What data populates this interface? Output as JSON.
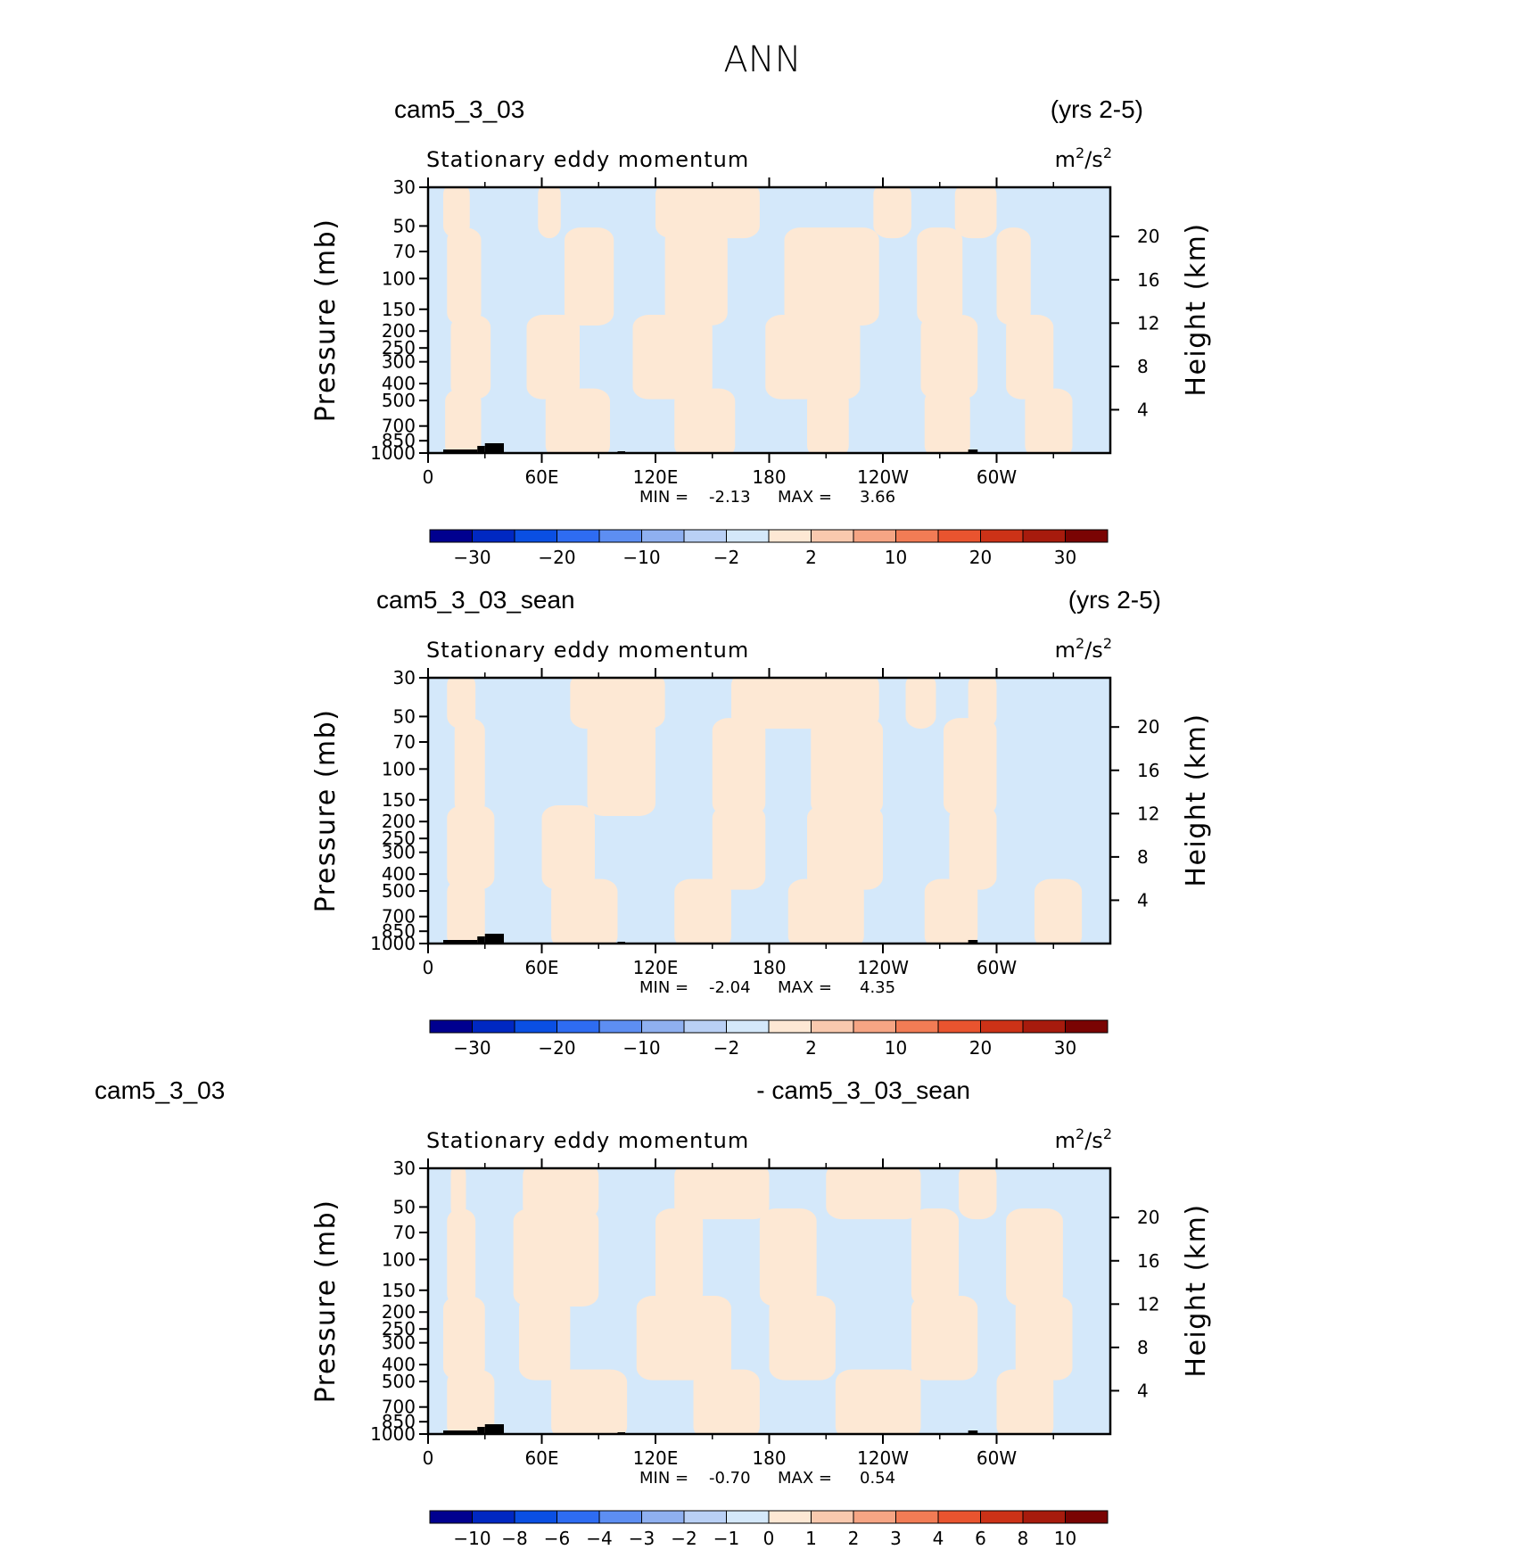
{
  "figure": {
    "title": "ANN"
  },
  "colors": {
    "positive_fill": "#fde8d4",
    "negative_fill": "#d4e8fa",
    "topography": "#000000",
    "axis": "#000000"
  },
  "chart_data": [
    {
      "type": "heatmap",
      "case_left": "cam5_3_03",
      "case_right": "(yrs 2-5)",
      "variable": "Stationary eddy momentum",
      "units_base": "m",
      "units_sup1": "2",
      "units_mid": "/s",
      "units_sup2": "2",
      "ylabel": "Pressure  (mb)",
      "y2label": "Height  (km)",
      "x_ticks": [
        "0",
        "60E",
        "120E",
        "180",
        "120W",
        "60W"
      ],
      "y_ticks": [
        "30",
        "50",
        "70",
        "100",
        "150",
        "200",
        "250",
        "300",
        "400",
        "500",
        "700",
        "850",
        "1000"
      ],
      "y2_ticks": [
        "20",
        "16",
        "12",
        "8",
        "4"
      ],
      "min_label": "MIN =",
      "min_value": "-2.13",
      "max_label": "MAX =",
      "max_value": "3.66",
      "colorbar_ticks": [
        "−30",
        "−20",
        "−10",
        "−2",
        "2",
        "10",
        "20",
        "30"
      ],
      "colorbar_colors": [
        "#00008f",
        "#0028c2",
        "#0a4fe3",
        "#2e6cf2",
        "#5d8ef2",
        "#8fb0f0",
        "#b9d0f5",
        "#d4e8fa",
        "#fde8d4",
        "#f9c9ae",
        "#f6a584",
        "#f27c55",
        "#e9542f",
        "#cc3217",
        "#a71b0d",
        "#7a0403"
      ],
      "zero_contour_crossings": [
        {
          "p": 30,
          "lons": [
            8,
            22,
            58,
            70,
            120,
            175,
            235,
            255,
            278,
            300,
            312
          ]
        },
        {
          "p": 100,
          "lons": [
            10,
            28,
            72,
            98,
            125,
            158,
            188,
            238,
            258,
            282,
            300,
            318
          ]
        },
        {
          "p": 300,
          "lons": [
            12,
            33,
            52,
            80,
            108,
            150,
            178,
            228,
            260,
            290,
            305,
            330
          ]
        },
        {
          "p": 700,
          "lons": [
            9,
            28,
            62,
            96,
            130,
            162,
            200,
            222,
            262,
            286,
            315,
            340
          ]
        }
      ]
    },
    {
      "type": "heatmap",
      "case_left": "cam5_3_03_sean",
      "case_right": "(yrs 2-5)",
      "variable": "Stationary eddy momentum",
      "units_base": "m",
      "units_sup1": "2",
      "units_mid": "/s",
      "units_sup2": "2",
      "ylabel": "Pressure  (mb)",
      "y2label": "Height  (km)",
      "x_ticks": [
        "0",
        "60E",
        "120E",
        "180",
        "120W",
        "60W"
      ],
      "y_ticks": [
        "30",
        "50",
        "70",
        "100",
        "150",
        "200",
        "250",
        "300",
        "400",
        "500",
        "700",
        "850",
        "1000"
      ],
      "y2_ticks": [
        "20",
        "16",
        "12",
        "8",
        "4"
      ],
      "min_label": "MIN =",
      "min_value": "-2.04",
      "max_label": "MAX =",
      "max_value": "4.35",
      "colorbar_ticks": [
        "−30",
        "−20",
        "−10",
        "−2",
        "2",
        "10",
        "20",
        "30"
      ],
      "colorbar_colors": [
        "#00008f",
        "#0028c2",
        "#0a4fe3",
        "#2e6cf2",
        "#5d8ef2",
        "#8fb0f0",
        "#b9d0f5",
        "#d4e8fa",
        "#fde8d4",
        "#f9c9ae",
        "#f6a584",
        "#f27c55",
        "#e9542f",
        "#cc3217",
        "#a71b0d",
        "#7a0403"
      ],
      "zero_contour_crossings": [
        {
          "p": 30,
          "lons": [
            10,
            25,
            75,
            125,
            160,
            238,
            252,
            268,
            285,
            300
          ]
        },
        {
          "p": 100,
          "lons": [
            14,
            30,
            84,
            120,
            150,
            178,
            202,
            240,
            272,
            300,
            330
          ]
        },
        {
          "p": 300,
          "lons": [
            10,
            35,
            60,
            88,
            150,
            178,
            200,
            240,
            275,
            300,
            328
          ]
        },
        {
          "p": 700,
          "lons": [
            10,
            30,
            65,
            100,
            130,
            160,
            190,
            230,
            262,
            290,
            320,
            345
          ]
        }
      ]
    },
    {
      "type": "heatmap",
      "case_left": "cam5_3_03",
      "case_right": "- cam5_3_03_sean",
      "variable": "Stationary eddy momentum",
      "units_base": "m",
      "units_sup1": "2",
      "units_mid": "/s",
      "units_sup2": "2",
      "ylabel": "Pressure  (mb)",
      "y2label": "Height  (km)",
      "x_ticks": [
        "0",
        "60E",
        "120E",
        "180",
        "120W",
        "60W"
      ],
      "y_ticks": [
        "30",
        "50",
        "70",
        "100",
        "150",
        "200",
        "250",
        "300",
        "400",
        "500",
        "700",
        "850",
        "1000"
      ],
      "y2_ticks": [
        "20",
        "16",
        "12",
        "8",
        "4"
      ],
      "min_label": "MIN =",
      "min_value": "-0.70",
      "max_label": "MAX =",
      "max_value": "0.54",
      "colorbar_ticks": [
        "−10",
        "−8",
        "−6",
        "−4",
        "−3",
        "−2",
        "−1",
        "0",
        "1",
        "2",
        "3",
        "4",
        "6",
        "8",
        "10"
      ],
      "colorbar_colors": [
        "#00008f",
        "#0028c2",
        "#0a4fe3",
        "#2e6cf2",
        "#5d8ef2",
        "#8fb0f0",
        "#b9d0f5",
        "#d4e8fa",
        "#fde8d4",
        "#f9c9ae",
        "#f6a584",
        "#f27c55",
        "#e9542f",
        "#cc3217",
        "#a71b0d",
        "#7a0403"
      ],
      "zero_contour_crossings": [
        {
          "p": 30,
          "lons": [
            12,
            20,
            50,
            90,
            130,
            180,
            210,
            260,
            280,
            300,
            330
          ]
        },
        {
          "p": 100,
          "lons": [
            10,
            25,
            45,
            90,
            120,
            145,
            175,
            205,
            255,
            280,
            305,
            335
          ]
        },
        {
          "p": 300,
          "lons": [
            8,
            30,
            48,
            75,
            110,
            160,
            180,
            215,
            255,
            290,
            310,
            340
          ]
        },
        {
          "p": 700,
          "lons": [
            10,
            35,
            65,
            105,
            140,
            175,
            215,
            260,
            300,
            330
          ]
        }
      ]
    }
  ]
}
